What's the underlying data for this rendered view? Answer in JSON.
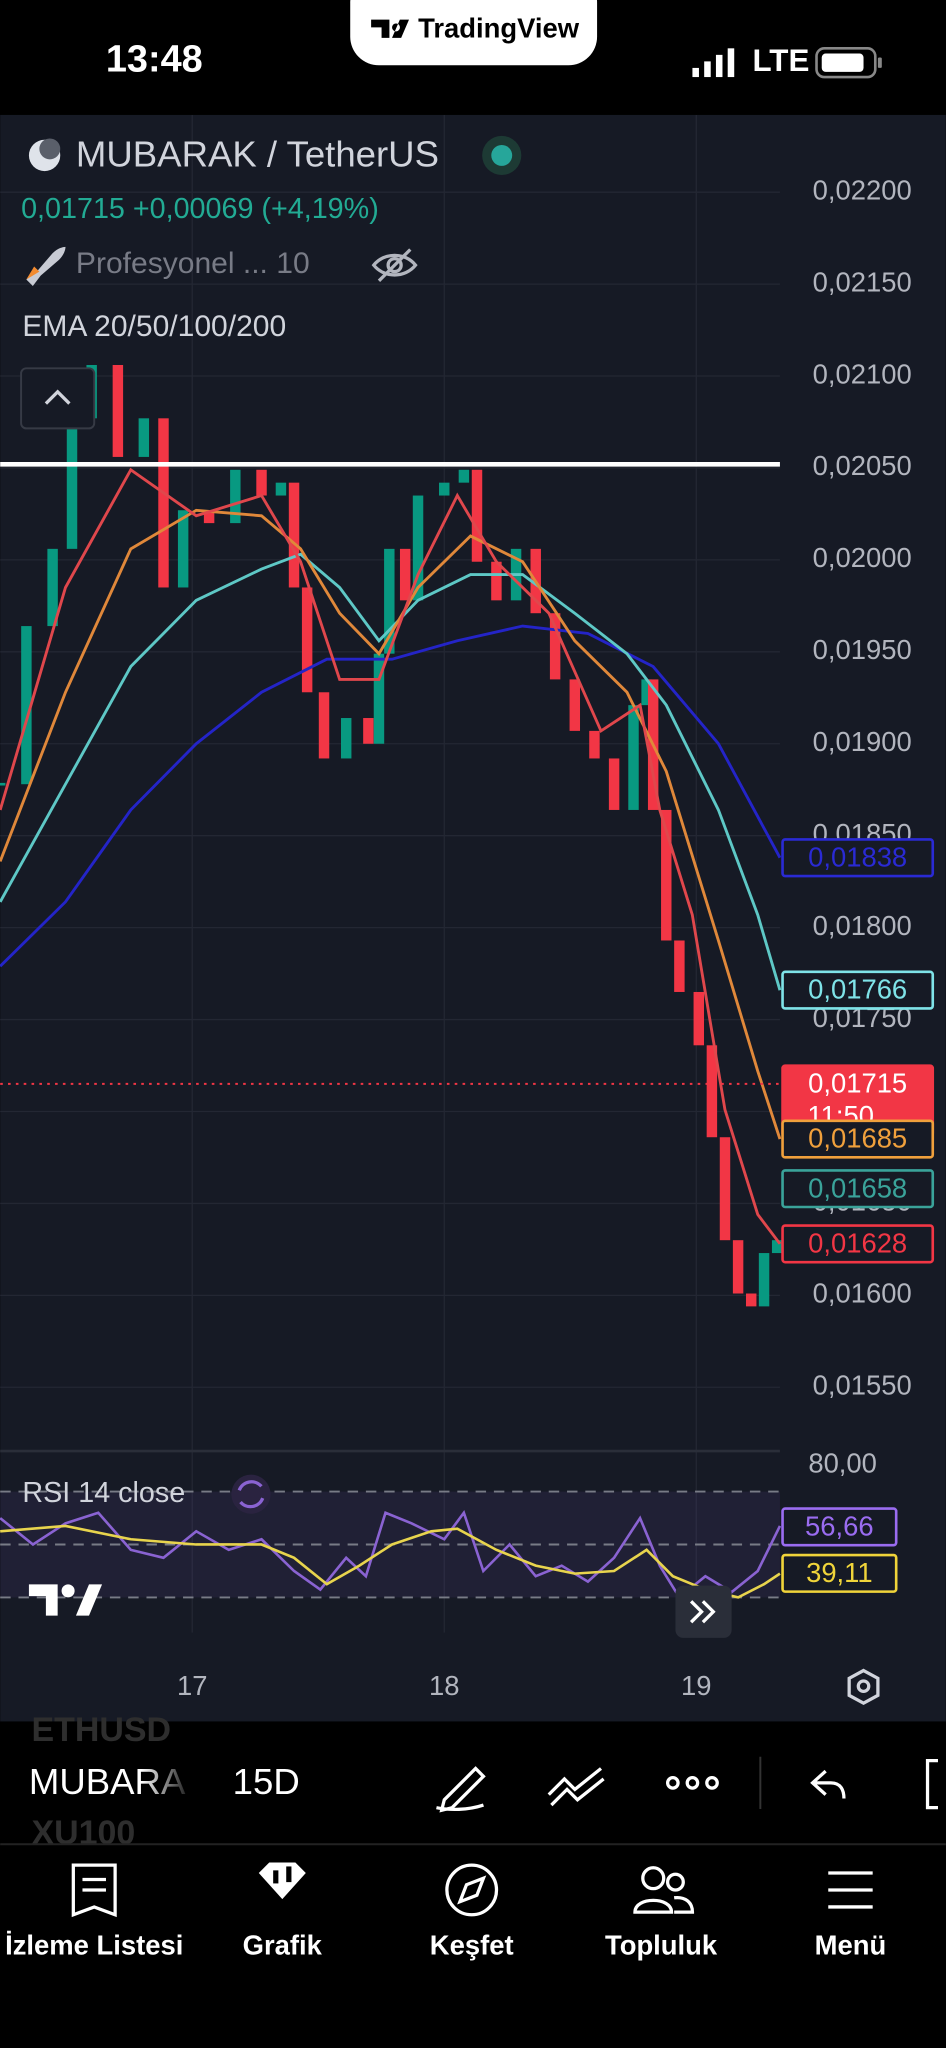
{
  "status_bar": {
    "time": "13:48",
    "network": "LTE"
  },
  "banner": {
    "brand": "TradingView"
  },
  "chart_data": [
    {
      "type": "candlestick",
      "title": "MUBARAK / TetherUS",
      "subtitle": "0,01715 +0,00069 (+4,19%)",
      "annotations": [
        "Profesyonel ... 10",
        "EMA 20/50/100/200"
      ],
      "x": [
        16.238,
        16.342,
        16.446,
        16.523,
        16.601,
        16.705,
        16.808,
        16.886,
        16.964,
        17.067,
        17.171,
        17.275,
        17.352,
        17.404,
        17.456,
        17.523,
        17.611,
        17.699,
        17.741,
        17.782,
        17.845,
        17.896,
        18.0,
        18.078,
        18.13,
        18.207,
        18.285,
        18.363,
        18.44,
        18.518,
        18.596,
        18.674,
        18.751,
        18.803,
        18.829,
        18.881,
        18.933,
        19.01,
        19.062,
        19.114,
        19.166,
        19.218,
        19.269,
        19.321
      ],
      "values": [
        0.01878,
        0.01964,
        0.02006,
        0.02077,
        0.02106,
        0.02056,
        0.02077,
        0.01985,
        0.02027,
        0.0202,
        0.02049,
        0.02035,
        0.02042,
        0.01985,
        0.01928,
        0.01892,
        0.01914,
        0.019,
        0.01949,
        0.02006,
        0.01978,
        0.02035,
        0.02042,
        0.02049,
        0.01999,
        0.01978,
        0.02006,
        0.01971,
        0.01935,
        0.01907,
        0.01892,
        0.01864,
        0.01921,
        0.01935,
        0.01864,
        0.01793,
        0.01765,
        0.01736,
        0.01686,
        0.0163,
        0.01601,
        0.01594,
        0.01623,
        0.0163
      ],
      "up_color": "#089981",
      "down_color": "#f23645",
      "series": [
        {
          "color": "#2424c8",
          "x": [
            16.238,
            16.497,
            16.756,
            17.016,
            17.275,
            17.534,
            17.793,
            18.052,
            18.311,
            18.57,
            18.829,
            19.088,
            19.332
          ],
          "values": [
            0.01779,
            0.01814,
            0.01864,
            0.019,
            0.01928,
            0.01946,
            0.01946,
            0.01956,
            0.01964,
            0.0196,
            0.01942,
            0.019,
            0.01838
          ]
        },
        {
          "color": "#5ec8c6",
          "x": [
            16.238,
            16.497,
            16.756,
            17.016,
            17.275,
            17.43,
            17.585,
            17.741,
            17.896,
            18.104,
            18.311,
            18.518,
            18.725,
            18.881,
            19.088,
            19.244,
            19.332
          ],
          "values": [
            0.01814,
            0.01878,
            0.01942,
            0.01978,
            0.01995,
            0.02003,
            0.01985,
            0.01956,
            0.01978,
            0.01992,
            0.01992,
            0.01971,
            0.01949,
            0.01921,
            0.01864,
            0.01807,
            0.01766
          ]
        },
        {
          "color": "#e0883a",
          "x": [
            16.238,
            16.497,
            16.756,
            17.016,
            17.275,
            17.43,
            17.585,
            17.741,
            17.896,
            18.104,
            18.311,
            18.518,
            18.725,
            18.881,
            19.088,
            19.244,
            19.332
          ],
          "values": [
            0.01836,
            0.01928,
            0.02006,
            0.02027,
            0.02024,
            0.02006,
            0.01971,
            0.01949,
            0.01985,
            0.02013,
            0.01999,
            0.01956,
            0.01928,
            0.01885,
            0.01793,
            0.01722,
            0.01685
          ]
        },
        {
          "color": "#e0474c",
          "x": [
            16.238,
            16.497,
            16.756,
            17.016,
            17.275,
            17.43,
            17.585,
            17.741,
            17.896,
            18.052,
            18.207,
            18.415,
            18.622,
            18.777,
            18.855,
            18.984,
            19.114,
            19.244,
            19.332
          ],
          "values": [
            0.01864,
            0.01985,
            0.02049,
            0.02024,
            0.02035,
            0.01999,
            0.01935,
            0.01935,
            0.01992,
            0.02035,
            0.01999,
            0.01971,
            0.01907,
            0.01921,
            0.01864,
            0.01807,
            0.01701,
            0.01644,
            0.01628
          ]
        }
      ],
      "hline": 0.02052,
      "hline_color": "#ffffff",
      "xlim": [
        16.238,
        19.332
      ],
      "xticks": [
        17,
        18,
        19
      ],
      "ylim": [
        0.01516,
        0.02242
      ],
      "yticks": [
        {
          "value": 0.022,
          "label": "0,02200"
        },
        {
          "value": 0.0215,
          "label": "0,02150"
        },
        {
          "value": 0.021,
          "label": "0,02100"
        },
        {
          "value": 0.0205,
          "label": "0,02050"
        },
        {
          "value": 0.02,
          "label": "0,02000"
        },
        {
          "value": 0.0195,
          "label": "0,01950"
        },
        {
          "value": 0.019,
          "label": "0,01900"
        },
        {
          "value": 0.0185,
          "label": "0,01850"
        },
        {
          "value": 0.018,
          "label": "0,01800"
        },
        {
          "value": 0.0175,
          "label": "0,01750"
        },
        {
          "value": 0.017,
          "label": "0,01700"
        },
        {
          "value": 0.0165,
          "label": "0,01650"
        },
        {
          "value": 0.016,
          "label": "0,01600"
        },
        {
          "value": 0.0155,
          "label": "0,01550"
        }
      ],
      "grid": true,
      "price_labels": [
        {
          "value": 0.01838,
          "label": "0,01838",
          "color": "#2a2ad4"
        },
        {
          "value": 0.01766,
          "label": "0,01766",
          "color": "#7fe3e8"
        },
        {
          "value": 0.01715,
          "label": "0,01715",
          "sub": "11:50",
          "color": "#f23645",
          "filled": true
        },
        {
          "value": 0.01685,
          "label": "0,01685",
          "color": "#f0a03c"
        },
        {
          "value": 0.01658,
          "label": "0,01658",
          "color": "#3aa39a"
        },
        {
          "value": 0.01628,
          "label": "0,01628",
          "color": "#f23645"
        }
      ]
    },
    {
      "type": "line",
      "title": "RSI 14 close",
      "ylim": [
        16.7,
        84.8
      ],
      "yticks": [
        {
          "value": 80,
          "label": "80,00"
        }
      ],
      "hlines": [
        70,
        50,
        30
      ],
      "band_color": "#7e57c2",
      "series": [
        {
          "color": "#8a63d2",
          "x": [
            16.238,
            16.368,
            16.497,
            16.627,
            16.756,
            16.886,
            17.016,
            17.145,
            17.275,
            17.404,
            17.508,
            17.611,
            17.689,
            17.767,
            17.87,
            18.0,
            18.078,
            18.155,
            18.259,
            18.363,
            18.466,
            18.57,
            18.674,
            18.777,
            18.855,
            18.933,
            19.036,
            19.14,
            19.244,
            19.332
          ],
          "values": [
            60,
            50,
            58,
            62,
            48,
            45,
            55,
            48,
            52,
            40,
            33,
            45,
            38,
            62,
            58,
            52,
            62,
            40,
            50,
            38,
            42,
            36,
            45,
            60,
            42,
            30,
            38,
            32,
            40,
            57
          ]
        },
        {
          "color": "#e8d44d",
          "x": [
            16.238,
            16.497,
            16.756,
            17.016,
            17.275,
            17.404,
            17.534,
            17.663,
            17.793,
            17.948,
            18.052,
            18.207,
            18.363,
            18.518,
            18.674,
            18.803,
            18.907,
            19.036,
            19.166,
            19.269,
            19.332
          ],
          "values": [
            55,
            57,
            52,
            50,
            50,
            45,
            35,
            42,
            50,
            55,
            56,
            48,
            42,
            39,
            40,
            48,
            38,
            33,
            30,
            35,
            39
          ]
        }
      ],
      "price_labels": [
        {
          "value": 56.66,
          "label": "56,66",
          "color": "#9a6cf0"
        },
        {
          "value": 39.11,
          "label": "39,11",
          "color": "#f0d43a"
        }
      ]
    }
  ],
  "toolbar": {
    "symbol": "MUBARA",
    "interval": "15D",
    "faded": [
      "ETHUSD",
      "XU100"
    ]
  },
  "nav": [
    "İzleme Listesi",
    "Grafik",
    "Keşfet",
    "Topluluk",
    "Menü"
  ]
}
